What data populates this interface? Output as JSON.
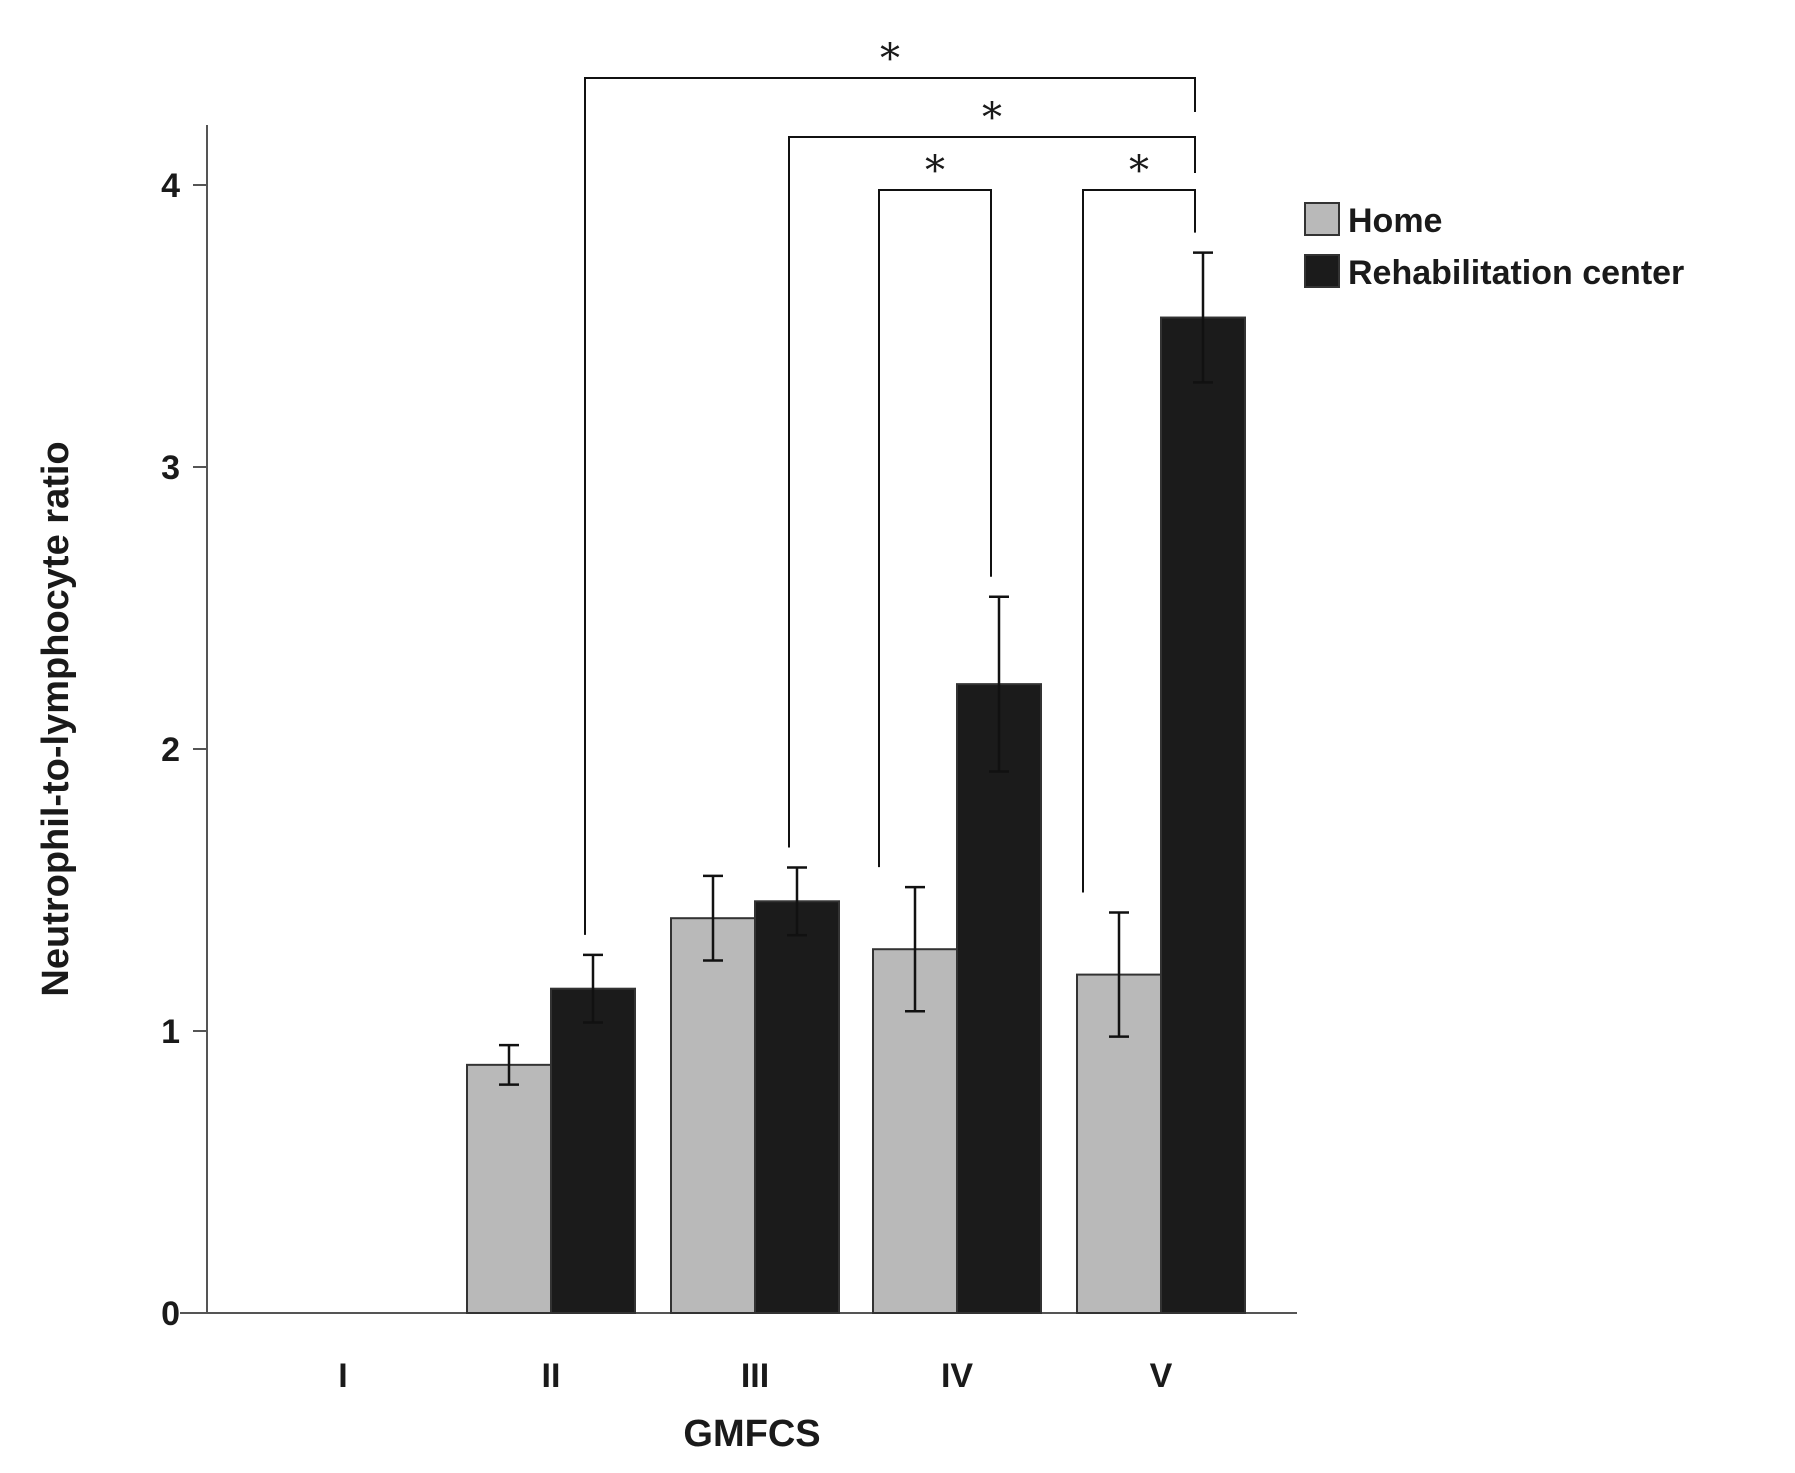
{
  "chart_data": {
    "type": "bar",
    "title": "",
    "xlabel": "GMFCS",
    "ylabel": "Neutrophil-to-lymphocyte ratio",
    "categories": [
      "I",
      "II",
      "III",
      "IV",
      "V"
    ],
    "ylim": [
      0,
      4.2
    ],
    "yticks": [
      "0",
      "1",
      "2",
      "3",
      "4"
    ],
    "grid": false,
    "legend_position": "top-right",
    "series": [
      {
        "name": "Home",
        "color": "#b9b9b9",
        "values": [
          null,
          0.88,
          1.4,
          1.29,
          1.2
        ],
        "errors": [
          null,
          0.07,
          0.15,
          0.22,
          0.22
        ]
      },
      {
        "name": "Rehabilitation center",
        "color": "#1b1b1b",
        "values": [
          null,
          1.15,
          1.46,
          2.23,
          3.53
        ],
        "errors": [
          null,
          0.12,
          0.12,
          0.31,
          0.23
        ]
      }
    ],
    "significance": [
      {
        "label": "*",
        "from": "II-Rehabilitation center",
        "to": "V-Rehabilitation center"
      },
      {
        "label": "*",
        "from": "III-Rehabilitation center",
        "to": "V-Rehabilitation center"
      },
      {
        "label": "*",
        "from": "IV-Home",
        "to": "IV-Rehabilitation center"
      },
      {
        "label": "*",
        "from": "V-Home",
        "to": "V-Rehabilitation center"
      }
    ]
  }
}
